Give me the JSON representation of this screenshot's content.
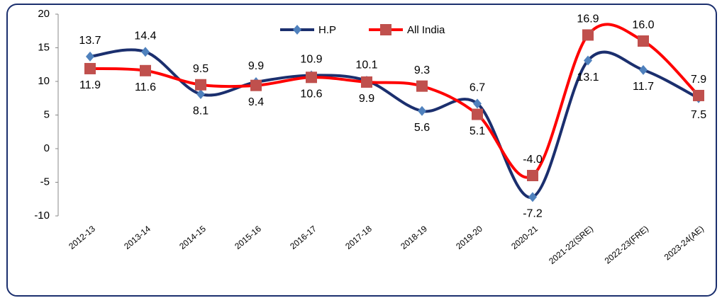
{
  "chart_data": {
    "type": "line",
    "categories": [
      "2012-13",
      "2013-14",
      "2014-15",
      "2015-16",
      "2016-17",
      "2017-18",
      "2018-19",
      "2019-20",
      "2020-21",
      "2021-22(SRE)",
      "2022-23(FRE)",
      "2023-24(AE)"
    ],
    "series": [
      {
        "name": "H.P",
        "color": "#1b2f6e",
        "marker": "diamond",
        "marker_color": "#4f81bd",
        "values": [
          13.7,
          14.4,
          8.1,
          9.9,
          10.9,
          10.1,
          5.6,
          6.7,
          -7.2,
          13.1,
          11.7,
          7.5
        ],
        "value_labels": [
          "13.7",
          "14.4",
          "8.1",
          "9.9",
          "10.9",
          "10.1",
          "5.6",
          "6.7",
          "-7.2",
          "13.1",
          "11.7",
          "7.5"
        ]
      },
      {
        "name": "All India",
        "color": "#ff0000",
        "marker": "square",
        "marker_color": "#c0504d",
        "values": [
          11.9,
          11.6,
          9.5,
          9.4,
          10.6,
          9.9,
          9.3,
          5.1,
          -4.0,
          16.9,
          16.0,
          7.9
        ],
        "value_labels": [
          "11.9",
          "11.6",
          "9.5",
          "9.4",
          "10.6",
          "9.9",
          "9.3",
          "5.1",
          "-4.0",
          "16.9",
          "16.0",
          "7.9"
        ]
      }
    ],
    "ylim": [
      -10,
      20
    ],
    "yticks": [
      -10,
      -5,
      0,
      5,
      10,
      15,
      20
    ],
    "grid": false,
    "legend": "top"
  }
}
